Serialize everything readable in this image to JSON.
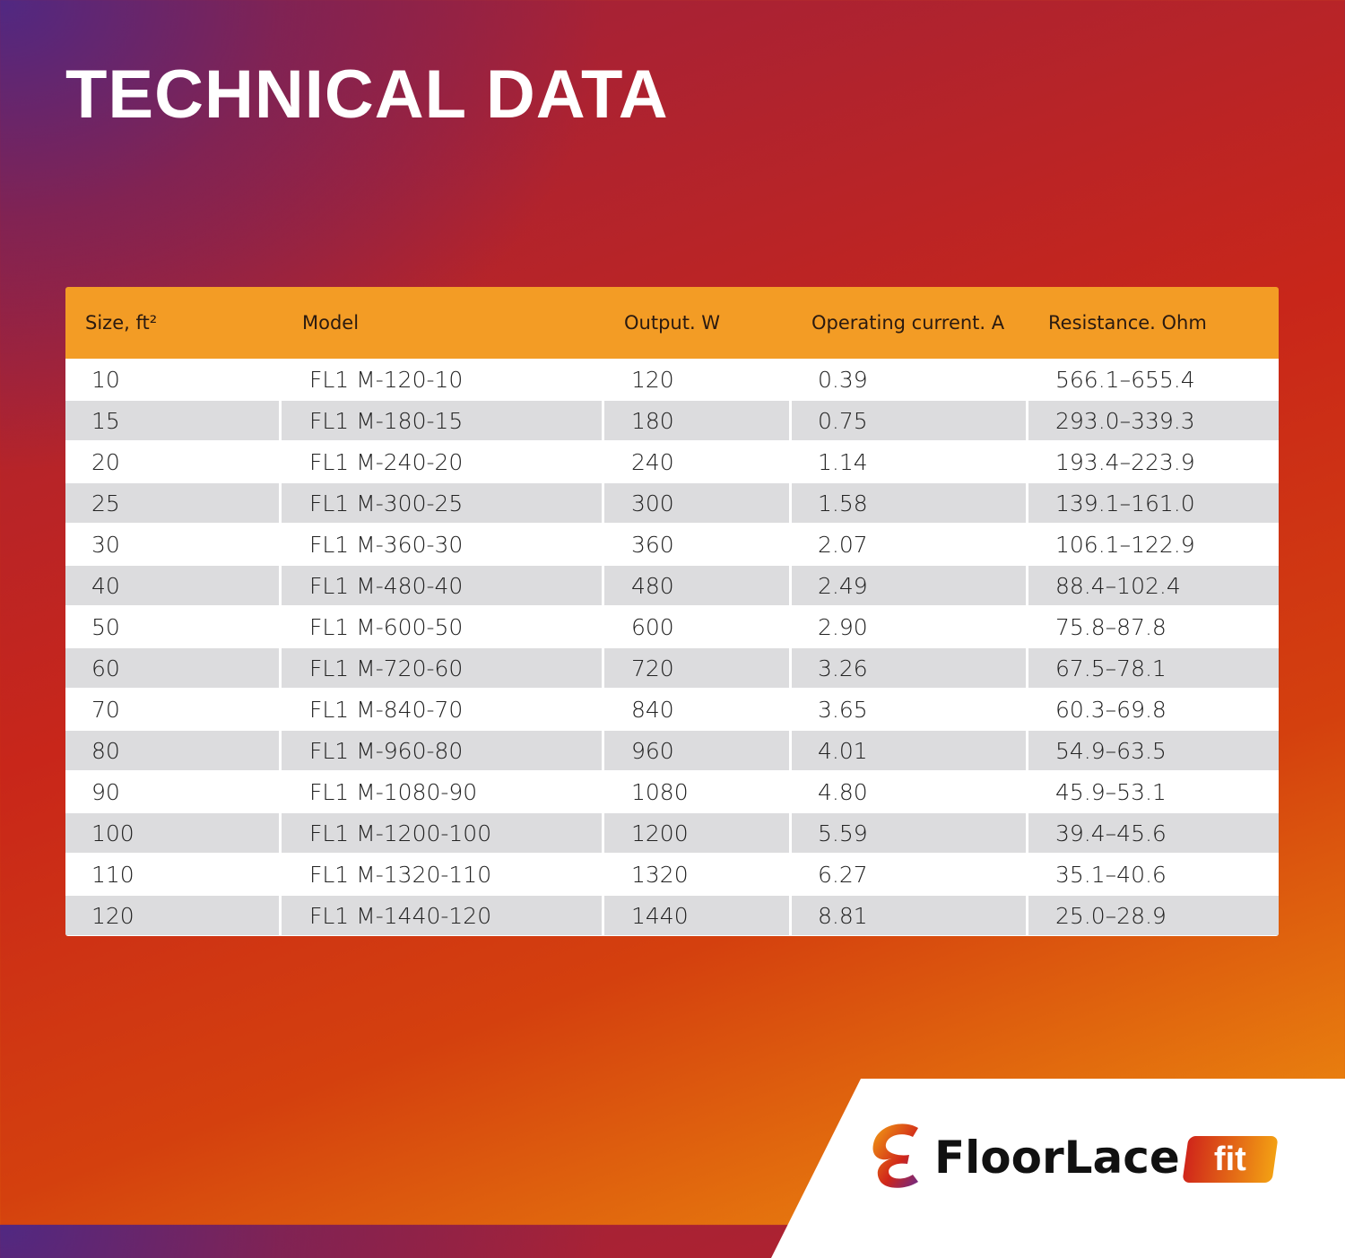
{
  "title": "TECHNICAL DATA",
  "table": {
    "headers": [
      "Size, ft²",
      "Model",
      "Output. W",
      "Operating current. A",
      "Resistance. Ohm"
    ],
    "rows": [
      [
        "10",
        "FL1 M-120-10",
        "120",
        "0.39",
        "566.1–655.4"
      ],
      [
        "15",
        "FL1 M-180-15",
        "180",
        "0.75",
        "293.0–339.3"
      ],
      [
        "20",
        "FL1 M-240-20",
        "240",
        "1.14",
        "193.4–223.9"
      ],
      [
        "25",
        "FL1 M-300-25",
        "300",
        "1.58",
        "139.1–161.0"
      ],
      [
        "30",
        "FL1 M-360-30",
        "360",
        "2.07",
        "106.1–122.9"
      ],
      [
        "40",
        "FL1 M-480-40",
        "480",
        "2.49",
        "88.4–102.4"
      ],
      [
        "50",
        "FL1 M-600-50",
        "600",
        "2.90",
        "75.8–87.8"
      ],
      [
        "60",
        "FL1 M-720-60",
        "720",
        "3.26",
        "67.5–78.1"
      ],
      [
        "70",
        "FL1 M-840-70",
        "840",
        "3.65",
        "60.3–69.8"
      ],
      [
        "80",
        "FL1 M-960-80",
        "960",
        "4.01",
        "54.9–63.5"
      ],
      [
        "90",
        "FL1 M-1080-90",
        "1080",
        "4.80",
        "45.9–53.1"
      ],
      [
        "100",
        "FL1 M-1200-100",
        "1200",
        "5.59",
        "39.4–45.6"
      ],
      [
        "110",
        "FL1 M-1320-110",
        "1320",
        "6.27",
        "35.1–40.6"
      ],
      [
        "120",
        "FL1 M-1440-120",
        "1440",
        "8.81",
        "25.0–28.9"
      ]
    ]
  },
  "logo": {
    "brand": "FloorLace",
    "badge": "fit",
    "icon": "ribbon-e-logo-icon"
  },
  "colors": {
    "header": "#f39c25",
    "row_alt": "#dcdcde",
    "accent_red": "#d0261a",
    "accent_orange": "#f3a013"
  }
}
